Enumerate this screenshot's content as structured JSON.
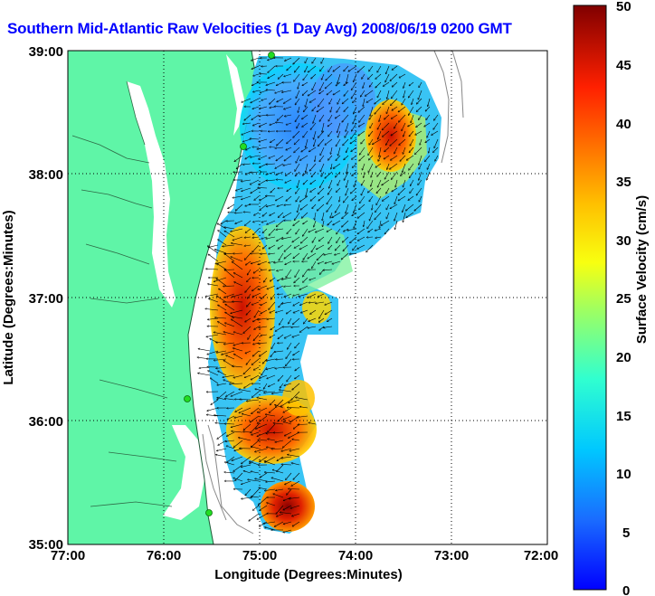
{
  "title": "Southern Mid-Atlantic Raw Velocities (1 Day Avg) 2008/06/19 0200 GMT",
  "map": {
    "x_axis": {
      "label": "Longitude (Degrees:Minutes)",
      "ticks": [
        "77:00",
        "76:00",
        "75:00",
        "74:00",
        "73:00",
        "72:00"
      ],
      "range": [
        -77,
        -72
      ]
    },
    "y_axis": {
      "label": "Latitude (Degrees:Minutes)",
      "ticks": [
        "39:00",
        "38:00",
        "37:00",
        "36:00",
        "35:00"
      ],
      "range": [
        35,
        39
      ]
    },
    "grid": "dotted",
    "land_color": "#5ff5a7",
    "water_color": "#ffffff",
    "station_color": "#22dd22"
  },
  "colorbar": {
    "label": "Surface Velocity (cm/s)",
    "ticks": [
      "50",
      "45",
      "40",
      "35",
      "30",
      "25",
      "20",
      "15",
      "10",
      "5",
      "0"
    ],
    "range": [
      0,
      50
    ]
  }
}
